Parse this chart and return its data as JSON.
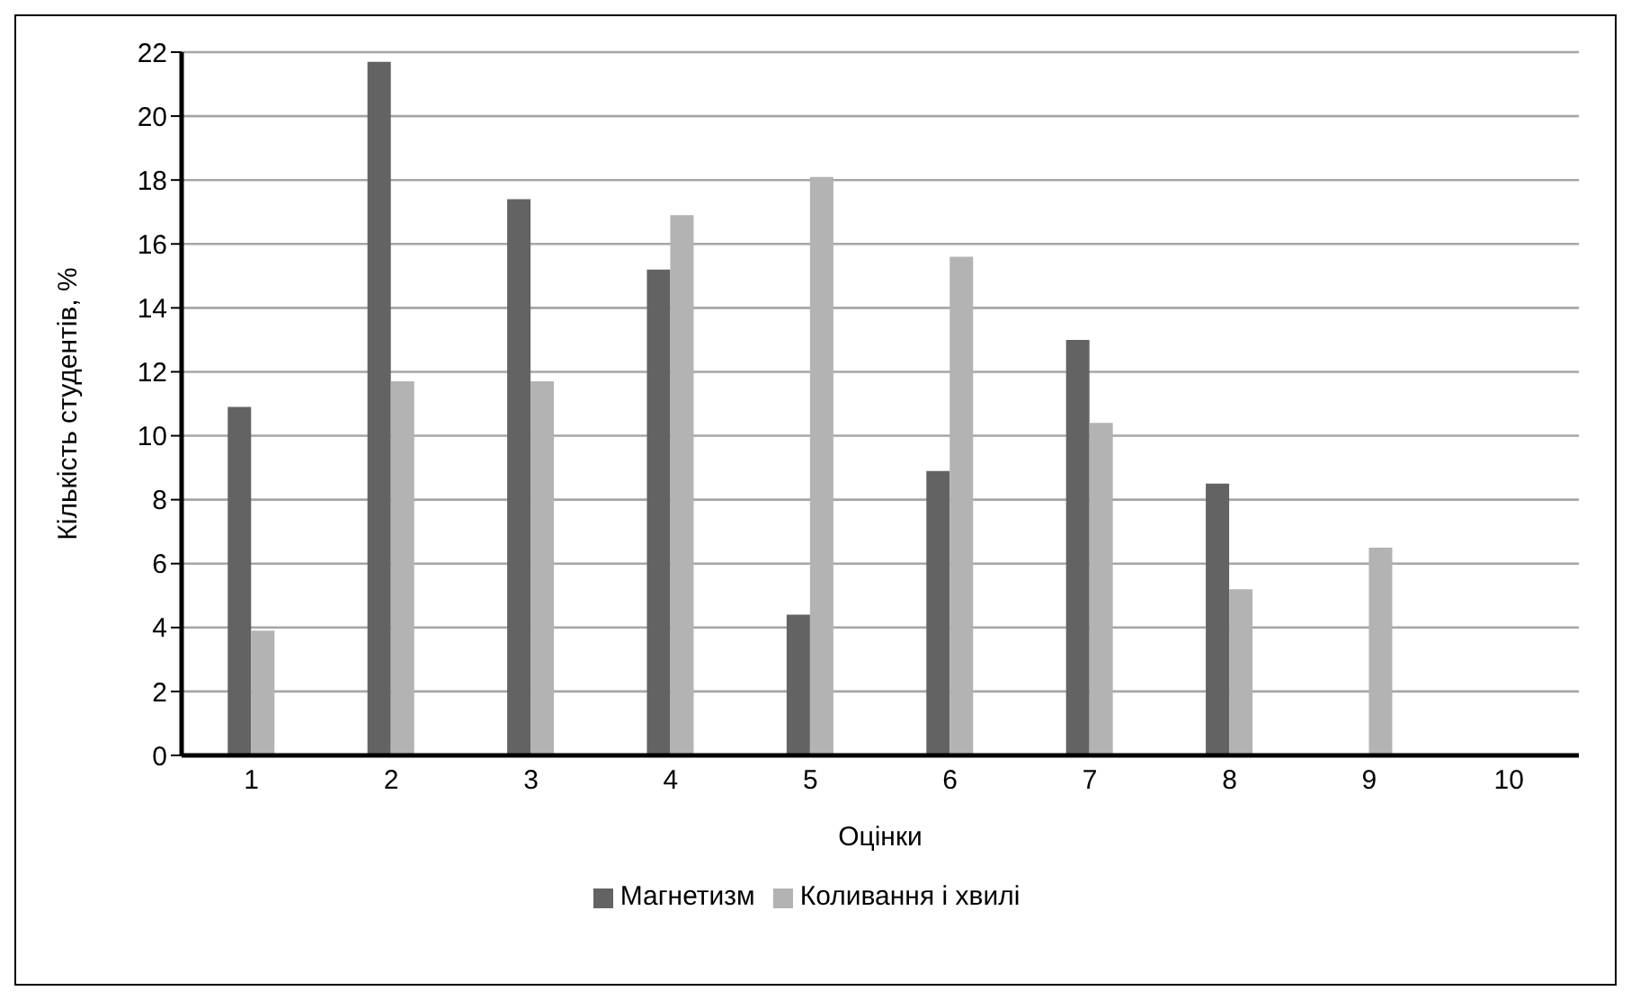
{
  "chart_data": {
    "type": "bar",
    "xlabel": "Оцінки",
    "ylabel": "Кількість студентів, %",
    "categories": [
      "1",
      "2",
      "3",
      "4",
      "5",
      "6",
      "7",
      "8",
      "9",
      "10"
    ],
    "series": [
      {
        "name": "Магнетизм",
        "color": "#636363",
        "values": [
          10.9,
          21.7,
          17.4,
          15.2,
          4.4,
          8.9,
          13.0,
          8.5,
          0,
          0
        ]
      },
      {
        "name": "Коливання і хвилі",
        "color": "#b3b3b3",
        "values": [
          3.9,
          11.7,
          11.7,
          16.9,
          18.1,
          15.6,
          10.4,
          5.2,
          6.5,
          0
        ]
      }
    ],
    "ylim": [
      0,
      22
    ],
    "yticks": [
      0,
      2,
      4,
      6,
      8,
      10,
      12,
      14,
      16,
      18,
      20,
      22
    ],
    "grid": "y",
    "legend": "bottom"
  }
}
